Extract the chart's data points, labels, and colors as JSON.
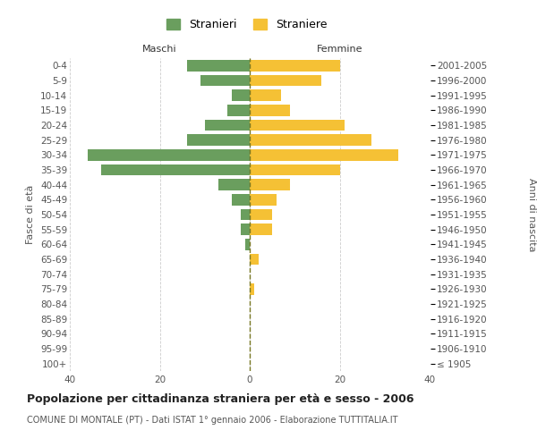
{
  "age_groups": [
    "100+",
    "95-99",
    "90-94",
    "85-89",
    "80-84",
    "75-79",
    "70-74",
    "65-69",
    "60-64",
    "55-59",
    "50-54",
    "45-49",
    "40-44",
    "35-39",
    "30-34",
    "25-29",
    "20-24",
    "15-19",
    "10-14",
    "5-9",
    "0-4"
  ],
  "birth_years": [
    "≤ 1905",
    "1906-1910",
    "1911-1915",
    "1916-1920",
    "1921-1925",
    "1926-1930",
    "1931-1935",
    "1936-1940",
    "1941-1945",
    "1946-1950",
    "1951-1955",
    "1956-1960",
    "1961-1965",
    "1966-1970",
    "1971-1975",
    "1976-1980",
    "1981-1985",
    "1986-1990",
    "1991-1995",
    "1996-2000",
    "2001-2005"
  ],
  "maschi": [
    0,
    0,
    0,
    0,
    0,
    0,
    0,
    0,
    1,
    2,
    2,
    4,
    7,
    33,
    36,
    14,
    10,
    5,
    4,
    11,
    14
  ],
  "femmine": [
    0,
    0,
    0,
    0,
    0,
    1,
    0,
    2,
    0,
    5,
    5,
    6,
    9,
    20,
    33,
    27,
    21,
    9,
    7,
    16,
    20
  ],
  "maschi_color": "#6a9e5e",
  "femmine_color": "#f5c135",
  "background_color": "#ffffff",
  "grid_color": "#cccccc",
  "title": "Popolazione per cittadinanza straniera per età e sesso - 2006",
  "subtitle": "COMUNE DI MONTALE (PT) - Dati ISTAT 1° gennaio 2006 - Elaborazione TUTTITALIA.IT",
  "ylabel_left": "Fasce di età",
  "ylabel_right": "Anni di nascita",
  "header_maschi": "Maschi",
  "header_femmine": "Femmine",
  "legend_maschi": "Stranieri",
  "legend_femmine": "Straniere",
  "xlim": 40,
  "bar_height": 0.75,
  "tick_fontsize": 7.5,
  "label_fontsize": 8,
  "title_fontsize": 9,
  "subtitle_fontsize": 7
}
